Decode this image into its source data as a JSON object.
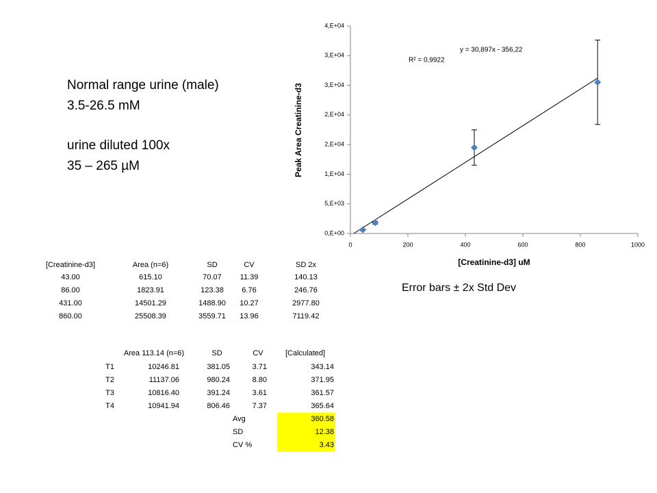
{
  "chart_data": {
    "type": "scatter",
    "x": [
      43,
      86,
      431,
      860
    ],
    "values": [
      615.1,
      1823.91,
      14501.29,
      25508.39
    ],
    "errors": [
      140.13,
      246.76,
      2977.8,
      7119.42
    ],
    "color": "#4f81bd",
    "xlabel": "[Creatinine-d3] uM",
    "ylabel": "Peak Area Creatinine-d3",
    "xlim": [
      0,
      1000
    ],
    "xticks": [
      0,
      200,
      400,
      600,
      800,
      1000
    ],
    "ylim": [
      0,
      35000
    ],
    "yticks": [
      {
        "value": 0,
        "label": "0,E+00"
      },
      {
        "value": 5000,
        "label": "5,E+03"
      },
      {
        "value": 10000,
        "label": "1,E+04"
      },
      {
        "value": 15000,
        "label": "2,E+04"
      },
      {
        "value": 20000,
        "label": "2,E+04"
      },
      {
        "value": 25000,
        "label": "3,E+04"
      },
      {
        "value": 30000,
        "label": "3,E+04"
      },
      {
        "value": 35000,
        "label": "4,E+04"
      }
    ],
    "trendline": {
      "slope": 30.897,
      "intercept": -356.22,
      "equation": "y = 30,897x - 356,22",
      "r2": "R² = 0,9922"
    },
    "caption": "Error bars ± 2x Std Dev"
  },
  "notes": [
    "Normal range urine (male)",
    "3.5-26.5 mM",
    "urine diluted 100x",
    "35 – 265 µM"
  ],
  "table1": {
    "header": [
      "[Creatinine-d3]",
      "Area (n=6)",
      "SD",
      "CV",
      "SD 2x"
    ],
    "rows": [
      [
        "43.00",
        "615.10",
        "70.07",
        "11.39",
        "140.13"
      ],
      [
        "86.00",
        "1823.91",
        "123.38",
        "6.76",
        "246.76"
      ],
      [
        "431.00",
        "14501.29",
        "1488.90",
        "10.27",
        "2977.80"
      ],
      [
        "860.00",
        "25508.39",
        "3559.71",
        "13.96",
        "7119.42"
      ]
    ]
  },
  "table2": {
    "header": [
      "Area 113.14 (n=6)",
      "SD",
      "CV",
      "[Calculated]"
    ],
    "rows": [
      [
        "T1",
        "10246.81",
        "381.05",
        "3.71",
        "343.14"
      ],
      [
        "T2",
        "11137.06",
        "980.24",
        "8.80",
        "371.95"
      ],
      [
        "T3",
        "10816.40",
        "391.24",
        "3.61",
        "361.57"
      ],
      [
        "T4",
        "10941.94",
        "806.46",
        "7.37",
        "365.64"
      ]
    ],
    "summary": [
      [
        "Avg",
        "360.58"
      ],
      [
        "SD",
        "12.38"
      ],
      [
        "CV %",
        "3.43"
      ]
    ]
  }
}
